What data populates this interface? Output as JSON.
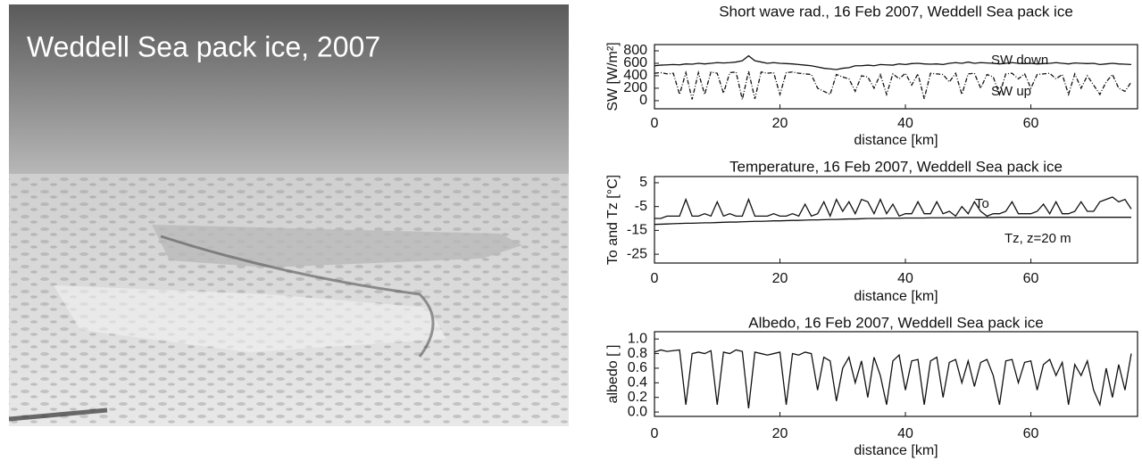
{
  "photo": {
    "caption": "Weddell Sea pack ice, 2007"
  },
  "chart_data": [
    {
      "type": "line",
      "title": "Short wave rad., 16 Feb 2007, Weddell Sea pack ice",
      "x_label": "distance [km]",
      "y_label": "SW [W/m²]",
      "x": [
        0,
        1,
        2,
        3,
        4,
        5,
        6,
        7,
        8,
        9,
        10,
        11,
        12,
        13,
        14,
        15,
        16,
        17,
        18,
        19,
        20,
        21,
        22,
        23,
        24,
        25,
        26,
        27,
        28,
        29,
        30,
        31,
        32,
        33,
        34,
        35,
        36,
        37,
        38,
        39,
        40,
        41,
        42,
        43,
        44,
        45,
        46,
        47,
        48,
        49,
        50,
        51,
        52,
        53,
        54,
        55,
        56,
        57,
        58,
        59,
        60,
        61,
        62,
        63,
        64,
        65,
        66,
        67,
        68,
        69,
        70,
        71,
        72,
        73,
        74,
        75,
        76
      ],
      "series": [
        {
          "name": "SW down",
          "color": "#111111",
          "line_style": "solid",
          "values": [
            560,
            570,
            575,
            580,
            575,
            590,
            585,
            600,
            590,
            600,
            610,
            605,
            610,
            620,
            640,
            720,
            640,
            620,
            600,
            610,
            600,
            595,
            590,
            580,
            570,
            560,
            540,
            520,
            510,
            500,
            520,
            530,
            560,
            560,
            570,
            560,
            580,
            575,
            570,
            590,
            580,
            595,
            600,
            590,
            585,
            590,
            580,
            600,
            610,
            600,
            620,
            600,
            610,
            605,
            600,
            590,
            600,
            610,
            600,
            595,
            600,
            590,
            595,
            600,
            610,
            600,
            590,
            605,
            600,
            595,
            600,
            580,
            590,
            600,
            590,
            585,
            580
          ]
        },
        {
          "name": "SW up",
          "color": "#111111",
          "line_style": "dashed",
          "values": [
            440,
            450,
            430,
            440,
            100,
            450,
            20,
            450,
            100,
            460,
            440,
            120,
            450,
            460,
            20,
            470,
            30,
            460,
            440,
            450,
            100,
            450,
            460,
            440,
            430,
            420,
            200,
            150,
            100,
            420,
            380,
            350,
            150,
            400,
            380,
            200,
            420,
            100,
            430,
            350,
            440,
            250,
            430,
            30,
            440,
            430,
            420,
            300,
            440,
            100,
            430,
            440,
            200,
            420,
            380,
            100,
            430,
            440,
            350,
            430,
            200,
            420,
            430,
            440,
            350,
            420,
            100,
            430,
            200,
            400,
            250,
            100,
            300,
            420,
            200,
            150,
            300
          ]
        }
      ],
      "xlim": [
        0,
        77
      ],
      "xticks": [
        0,
        20,
        40,
        60
      ],
      "ylim": [
        -130,
        900
      ],
      "yticks": [
        0,
        200,
        400,
        600,
        800
      ]
    },
    {
      "type": "line",
      "title": "Temperature, 16 Feb 2007, Weddell Sea pack ice",
      "x_label": "distance [km]",
      "y_label": "To and Tz [°C]",
      "x": [
        0,
        1,
        2,
        3,
        4,
        5,
        6,
        7,
        8,
        9,
        10,
        11,
        12,
        13,
        14,
        15,
        16,
        17,
        18,
        19,
        20,
        21,
        22,
        23,
        24,
        25,
        26,
        27,
        28,
        29,
        30,
        31,
        32,
        33,
        34,
        35,
        36,
        37,
        38,
        39,
        40,
        41,
        42,
        43,
        44,
        45,
        46,
        47,
        48,
        49,
        50,
        51,
        52,
        53,
        54,
        55,
        56,
        57,
        58,
        59,
        60,
        61,
        62,
        63,
        64,
        65,
        66,
        67,
        68,
        69,
        70,
        71,
        72,
        73,
        74,
        75,
        76
      ],
      "series": [
        {
          "name": "To",
          "color": "#111111",
          "line_style": "solid",
          "values": [
            -10,
            -10,
            -9,
            -9,
            -9,
            -2,
            -9,
            -9,
            -8,
            -9,
            -3,
            -9,
            -8,
            -9,
            -9,
            -2,
            -9,
            -9,
            -9,
            -8,
            -9,
            -9,
            -8,
            -9,
            -4,
            -9,
            -8,
            -3,
            -9,
            -2,
            -7,
            -3,
            -8,
            -2,
            -3,
            -8,
            -2,
            -8,
            -4,
            -9,
            -8,
            -8,
            -3,
            -8,
            -8,
            -3,
            -8,
            -7,
            -9,
            -5,
            -8,
            -3,
            -7,
            -9,
            -8,
            -8,
            -7,
            -3,
            -8,
            -8,
            -8,
            -7,
            -4,
            -8,
            -3,
            -8,
            -8,
            -7,
            -3,
            -7,
            -7,
            -3,
            -2,
            -1,
            -3,
            -2,
            -6
          ]
        },
        {
          "name": "Tz, z=20 m",
          "color": "#111111",
          "line_style": "solid",
          "values": [
            -12.5,
            -12.4,
            -12.3,
            -12.2,
            -12.1,
            -12,
            -12,
            -11.9,
            -11.8,
            -11.8,
            -11.7,
            -11.6,
            -11.5,
            -11.5,
            -11.4,
            -11.3,
            -11.2,
            -11.2,
            -11.1,
            -11,
            -11,
            -10.9,
            -10.8,
            -10.8,
            -10.7,
            -10.6,
            -10.6,
            -10.5,
            -10.4,
            -10.4,
            -10.3,
            -10.2,
            -10.2,
            -10.1,
            -10,
            -10,
            -10,
            -9.9,
            -9.9,
            -9.9,
            -9.8,
            -9.8,
            -9.8,
            -9.8,
            -9.7,
            -9.7,
            -9.7,
            -9.7,
            -9.7,
            -9.6,
            -9.6,
            -9.6,
            -9.6,
            -9.6,
            -9.6,
            -9.5,
            -9.5,
            -9.5,
            -9.5,
            -9.5,
            -9.5,
            -9.5,
            -9.5,
            -9.5,
            -9.5,
            -9.5,
            -9.5,
            -9.5,
            -9.5,
            -9.5,
            -9.5,
            -9.5,
            -9.5,
            -9.5,
            -9.5,
            -9.5,
            -9.5
          ]
        }
      ],
      "xlim": [
        0,
        77
      ],
      "xticks": [
        0,
        20,
        40,
        60
      ],
      "ylim": [
        -28.7,
        7.6
      ],
      "yticks": [
        5,
        -5,
        -15,
        -25
      ]
    },
    {
      "type": "line",
      "title": "Albedo, 16 Feb 2007, Weddell Sea pack ice",
      "x_label": "distance [km]",
      "y_label": "albedo [ ]",
      "x": [
        0,
        1,
        2,
        3,
        4,
        5,
        6,
        7,
        8,
        9,
        10,
        11,
        12,
        13,
        14,
        15,
        16,
        17,
        18,
        19,
        20,
        21,
        22,
        23,
        24,
        25,
        26,
        27,
        28,
        29,
        30,
        31,
        32,
        33,
        34,
        35,
        36,
        37,
        38,
        39,
        40,
        41,
        42,
        43,
        44,
        45,
        46,
        47,
        48,
        49,
        50,
        51,
        52,
        53,
        54,
        55,
        56,
        57,
        58,
        59,
        60,
        61,
        62,
        63,
        64,
        65,
        66,
        67,
        68,
        69,
        70,
        71,
        72,
        73,
        74,
        75,
        76
      ],
      "values": [
        0.82,
        0.85,
        0.83,
        0.84,
        0.85,
        0.1,
        0.8,
        0.82,
        0.8,
        0.84,
        0.1,
        0.82,
        0.8,
        0.85,
        0.83,
        0.05,
        0.82,
        0.8,
        0.78,
        0.8,
        0.82,
        0.1,
        0.8,
        0.78,
        0.82,
        0.8,
        0.3,
        0.75,
        0.7,
        0.15,
        0.6,
        0.75,
        0.4,
        0.7,
        0.2,
        0.75,
        0.5,
        0.1,
        0.7,
        0.78,
        0.3,
        0.7,
        0.72,
        0.1,
        0.7,
        0.75,
        0.2,
        0.68,
        0.72,
        0.4,
        0.7,
        0.35,
        0.68,
        0.72,
        0.5,
        0.1,
        0.7,
        0.72,
        0.4,
        0.68,
        0.7,
        0.3,
        0.65,
        0.72,
        0.5,
        0.68,
        0.1,
        0.65,
        0.5,
        0.7,
        0.3,
        0.1,
        0.6,
        0.2,
        0.65,
        0.3,
        0.8
      ],
      "color": "#111111",
      "xlim": [
        0,
        77
      ],
      "xticks": [
        0,
        20,
        40,
        60
      ],
      "ylim": [
        -0.06,
        1.1
      ],
      "yticks": [
        {
          "value": 0,
          "label": "0.0"
        },
        0.2,
        0.4,
        0.6,
        0.8,
        {
          "value": 1,
          "label": "1.0"
        }
      ]
    }
  ]
}
